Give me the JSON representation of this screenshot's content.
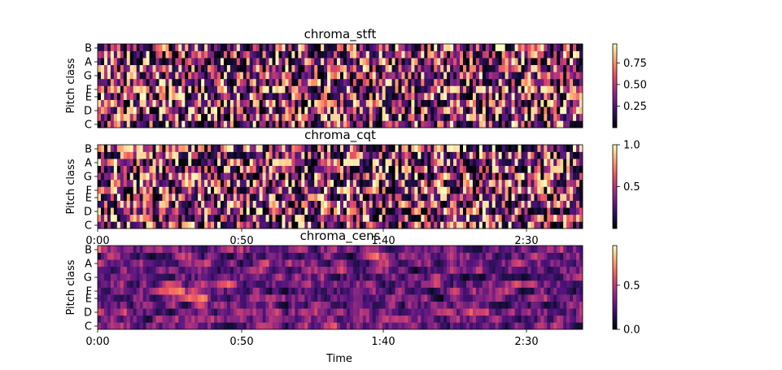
{
  "chart_data": [
    {
      "type": "heatmap",
      "title": "chroma_stft",
      "ylabel": "Pitch class",
      "xlabel": "",
      "y_ticks": [
        "C",
        "D",
        "E",
        "F",
        "G",
        "A",
        "B"
      ],
      "x_ticks": [],
      "colormap": "magma",
      "colorbar_ticks": [
        "0.25",
        "0.50",
        "0.75"
      ],
      "colorbar_range": [
        0.0,
        0.97
      ]
    },
    {
      "type": "heatmap",
      "title": "chroma_cqt",
      "ylabel": "Pitch class",
      "xlabel": "",
      "y_ticks": [
        "C",
        "D",
        "E",
        "F",
        "G",
        "A",
        "B"
      ],
      "x_ticks": [
        "0:00",
        "0:50",
        "1:40",
        "2:30"
      ],
      "colormap": "magma",
      "colorbar_ticks": [
        "0.5",
        "1.0"
      ],
      "colorbar_range": [
        0.0,
        1.0
      ]
    },
    {
      "type": "heatmap",
      "title": "chroma_cens",
      "ylabel": "Pitch class",
      "xlabel": "Time",
      "y_ticks": [
        "C",
        "D",
        "E",
        "F",
        "G",
        "A",
        "B"
      ],
      "x_ticks": [
        "0:00",
        "0:50",
        "1:40",
        "2:30"
      ],
      "colormap": "magma",
      "colorbar_ticks": [
        "0.0",
        "0.5"
      ],
      "colorbar_range": [
        0.0,
        0.95
      ]
    }
  ],
  "colors": {
    "magma_stops": [
      "#000004",
      "#1c1044",
      "#4f127b",
      "#812581",
      "#b5367a",
      "#e55064",
      "#fb8761",
      "#fec287",
      "#fcfdbf"
    ]
  }
}
